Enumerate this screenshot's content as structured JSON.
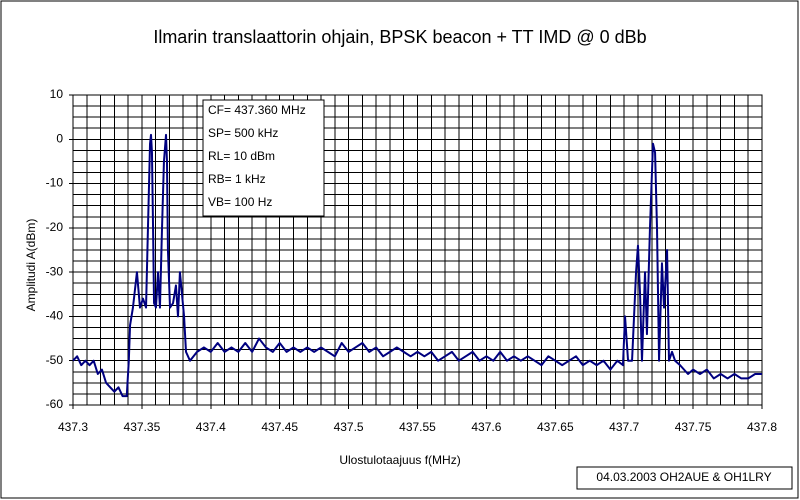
{
  "chart_data": {
    "type": "line",
    "title": "Ilmarin translaattorin ohjain, BPSK beacon + TT IMD @ 0 dBb",
    "xlabel": "Ulostulotaajuus f(MHz)",
    "ylabel": "Amplitudi A(dBm)",
    "annotations": [
      "CF= 437.360 MHz",
      "SP= 500 kHz",
      "RL= 10 dBm",
      "RB= 1 kHz",
      "VB= 100 Hz"
    ],
    "footer": "04.03.2003 OH2AUE & OH1LRY",
    "xlim": [
      437.3,
      437.8
    ],
    "xticks": [
      437.3,
      437.35,
      437.4,
      437.45,
      437.5,
      437.55,
      437.6,
      437.65,
      437.7,
      437.75,
      437.8
    ],
    "ylim": [
      -60,
      10
    ],
    "yticks": [
      10,
      0,
      -10,
      -20,
      -30,
      -40,
      -50,
      -60
    ],
    "grid": true,
    "color": "#000080",
    "x": [
      437.3,
      437.303,
      437.306,
      437.309,
      437.312,
      437.315,
      437.318,
      437.321,
      437.324,
      437.327,
      437.33,
      437.333,
      437.336,
      437.339,
      437.3405,
      437.3414,
      437.3435,
      437.3464,
      437.3486,
      437.3508,
      437.353,
      437.3544,
      437.3559,
      437.3566,
      437.3573,
      437.3581,
      437.3588,
      437.3602,
      437.3617,
      437.3631,
      437.3646,
      437.366,
      437.3675,
      437.3682,
      437.3689,
      437.3704,
      437.3726,
      437.3747,
      437.3762,
      437.3776,
      437.3791,
      437.3806,
      437.382,
      437.3849,
      437.39,
      437.395,
      437.4,
      437.405,
      437.41,
      437.415,
      437.42,
      437.425,
      437.43,
      437.435,
      437.44,
      437.445,
      437.45,
      437.455,
      437.46,
      437.465,
      437.47,
      437.475,
      437.48,
      437.485,
      437.49,
      437.495,
      437.5,
      437.505,
      437.51,
      437.515,
      437.52,
      437.525,
      437.53,
      437.535,
      437.54,
      437.545,
      437.55,
      437.555,
      437.56,
      437.565,
      437.57,
      437.575,
      437.58,
      437.585,
      437.59,
      437.595,
      437.6,
      437.605,
      437.61,
      437.615,
      437.62,
      437.625,
      437.63,
      437.635,
      437.64,
      437.645,
      437.65,
      437.655,
      437.66,
      437.665,
      437.67,
      437.675,
      437.68,
      437.685,
      437.69,
      437.695,
      437.6991,
      437.7006,
      437.7028,
      437.7057,
      437.7086,
      437.71,
      437.7115,
      437.7129,
      437.7151,
      437.7165,
      437.7187,
      437.7209,
      437.7224,
      437.7238,
      437.7253,
      437.7274,
      437.7289,
      437.7311,
      437.7325,
      437.7347,
      437.7369,
      437.7405,
      437.7463,
      437.75,
      437.755,
      437.76,
      437.765,
      437.77,
      437.775,
      437.78,
      437.785,
      437.79,
      437.795,
      437.8
    ],
    "values": [
      -50,
      -49,
      -51,
      -50,
      -51,
      -50,
      -53,
      -52,
      -55,
      -56,
      -57,
      -56,
      -58,
      -58,
      -50,
      -42,
      -38,
      -30,
      -38,
      -36,
      -38,
      -20,
      -1,
      1,
      -3,
      -20,
      -37,
      -38,
      -30,
      -38,
      -20,
      -5,
      1,
      -5,
      -25,
      -38,
      -37,
      -33,
      -40,
      -30,
      -35,
      -40,
      -48,
      -50,
      -48,
      -47,
      -48,
      -46,
      -48,
      -47,
      -48,
      -46,
      -48,
      -45,
      -47,
      -48,
      -46,
      -48,
      -47,
      -48,
      -47,
      -48,
      -47,
      -48,
      -49,
      -46,
      -48,
      -47,
      -46,
      -48,
      -47,
      -49,
      -48,
      -47,
      -48,
      -49,
      -48,
      -49,
      -48,
      -50,
      -49,
      -48,
      -50,
      -49,
      -48,
      -50,
      -49,
      -50,
      -48,
      -50,
      -49,
      -50,
      -49,
      -50,
      -51,
      -49,
      -50,
      -51,
      -50,
      -49,
      -51,
      -50,
      -51,
      -50,
      -52,
      -50,
      -51,
      -40,
      -50,
      -50,
      -30,
      -24,
      -35,
      -50,
      -30,
      -44,
      -20,
      -1,
      -3,
      -20,
      -50,
      -28,
      -38,
      -25,
      -50,
      -48,
      -50,
      -51,
      -53,
      -52,
      -53,
      -52,
      -54,
      -53,
      -54,
      -53,
      -54,
      -54,
      -53,
      -53
    ]
  }
}
